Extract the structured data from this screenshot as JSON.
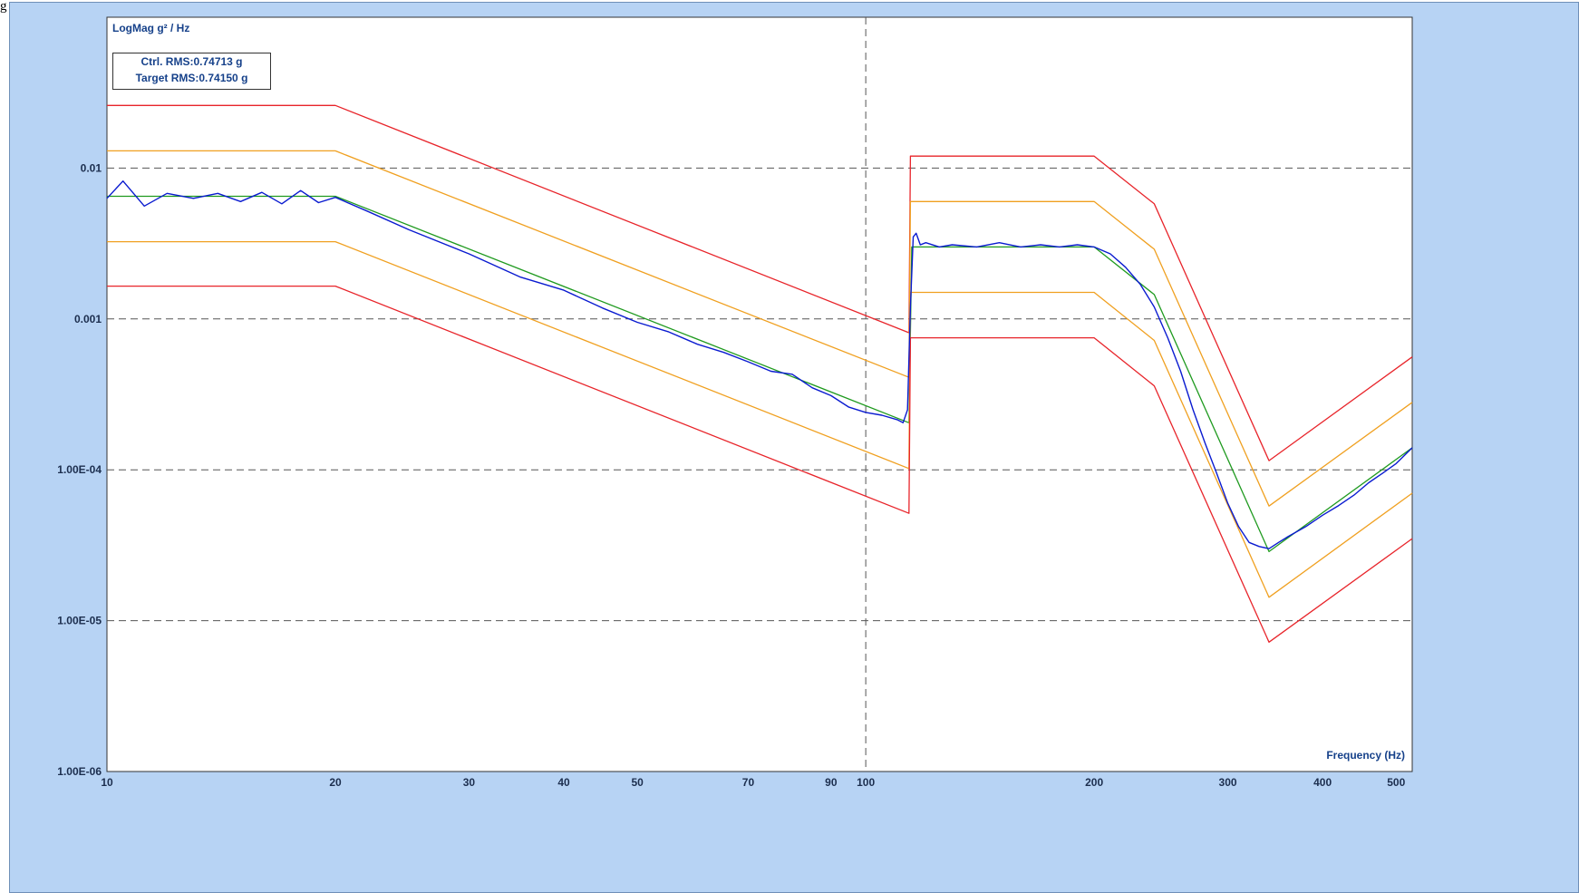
{
  "caption": "g",
  "colors": {
    "frame_bg": "#b7d3f4",
    "plot_bg": "#ffffff",
    "control": "#0a1bd0",
    "target": "#1f9a1f",
    "alarm": "#f0a020",
    "abort": "#e8242a",
    "grid": "#555555"
  },
  "rms": {
    "ctrl": "Ctrl. RMS:0.74713 g",
    "target": "Target RMS:0.74150 g"
  },
  "chart_data": {
    "type": "line",
    "title": "",
    "ylabel": "LogMag g² / Hz",
    "xlabel": "Frequency (Hz)",
    "x_scale": "log",
    "y_scale": "log",
    "xlim": [
      10,
      525
    ],
    "ylim": [
      1e-06,
      0.1
    ],
    "grid": "dashed",
    "x_ticks": [
      {
        "value": 10,
        "label": "10"
      },
      {
        "value": 20,
        "label": "20"
      },
      {
        "value": 30,
        "label": "30"
      },
      {
        "value": 40,
        "label": "40"
      },
      {
        "value": 50,
        "label": "50"
      },
      {
        "value": 70,
        "label": "70"
      },
      {
        "value": 90,
        "label": "90"
      },
      {
        "value": 100,
        "label": "100"
      },
      {
        "value": 200,
        "label": "200"
      },
      {
        "value": 300,
        "label": "300"
      },
      {
        "value": 400,
        "label": "400"
      },
      {
        "value": 500,
        "label": "500"
      }
    ],
    "x_grid": [
      100
    ],
    "y_ticks": [
      {
        "value": 0.01,
        "label": "0.01"
      },
      {
        "value": 0.001,
        "label": "0.001"
      },
      {
        "value": 0.0001,
        "label": "1.00E-04"
      },
      {
        "value": 1e-05,
        "label": "1.00E-05"
      },
      {
        "value": 1e-06,
        "label": "1.00E-06"
      }
    ],
    "series": [
      {
        "key": "abort_high",
        "color": "#e8242a",
        "x": [
          10,
          20,
          114,
          114.5,
          200,
          240,
          340,
          525
        ],
        "y": [
          0.026,
          0.026,
          0.00081,
          0.012,
          0.012,
          0.0058,
          0.000115,
          0.00056
        ]
      },
      {
        "key": "alarm_high",
        "color": "#f0a020",
        "x": [
          10,
          20,
          114,
          114.5,
          200,
          240,
          340,
          525
        ],
        "y": [
          0.013,
          0.013,
          0.00041,
          0.006,
          0.006,
          0.0029,
          5.75e-05,
          0.00028
        ]
      },
      {
        "key": "target",
        "color": "#1f9a1f",
        "x": [
          10,
          20,
          114,
          115,
          200,
          240,
          340,
          525
        ],
        "y": [
          0.0065,
          0.0065,
          0.000205,
          0.003,
          0.003,
          0.00145,
          2.87e-05,
          0.00014
        ]
      },
      {
        "key": "alarm_low",
        "color": "#f0a020",
        "x": [
          10,
          20,
          114,
          114.5,
          200,
          240,
          340,
          525
        ],
        "y": [
          0.00325,
          0.00325,
          0.000102,
          0.0015,
          0.0015,
          0.00072,
          1.43e-05,
          7e-05
        ]
      },
      {
        "key": "abort_low",
        "color": "#e8242a",
        "x": [
          10,
          20,
          114,
          114.5,
          200,
          240,
          340,
          525
        ],
        "y": [
          0.00165,
          0.00165,
          5.15e-05,
          0.00075,
          0.00075,
          0.00036,
          7.2e-06,
          3.5e-05
        ]
      },
      {
        "key": "control",
        "color": "#0a1bd0",
        "x": [
          10,
          10.5,
          11.2,
          12,
          13,
          14,
          15,
          16,
          17,
          18,
          19,
          20,
          22,
          25,
          30,
          35,
          40,
          45,
          50,
          55,
          60,
          65,
          70,
          75,
          80,
          85,
          90,
          95,
          100,
          105,
          110,
          112,
          113.5,
          114.5,
          115.5,
          116.5,
          118,
          120,
          125,
          130,
          140,
          150,
          160,
          170,
          180,
          190,
          200,
          210,
          220,
          230,
          240,
          250,
          260,
          270,
          280,
          290,
          300,
          310,
          320,
          330,
          340,
          350,
          360,
          380,
          400,
          420,
          440,
          460,
          480,
          500,
          525
        ],
        "y": [
          0.0063,
          0.0082,
          0.0056,
          0.0068,
          0.0063,
          0.0068,
          0.006,
          0.0069,
          0.0058,
          0.0071,
          0.0059,
          0.0064,
          0.0052,
          0.0039,
          0.0027,
          0.0019,
          0.00155,
          0.00118,
          0.00095,
          0.00082,
          0.00068,
          0.0006,
          0.00052,
          0.00045,
          0.00043,
          0.00035,
          0.00031,
          0.00026,
          0.00024,
          0.00023,
          0.000215,
          0.000205,
          0.00025,
          0.0012,
          0.0035,
          0.0037,
          0.0031,
          0.0032,
          0.003,
          0.0031,
          0.003,
          0.0032,
          0.003,
          0.0031,
          0.003,
          0.0031,
          0.003,
          0.0027,
          0.0022,
          0.0017,
          0.0012,
          0.00075,
          0.00045,
          0.00025,
          0.00015,
          9.5e-05,
          6e-05,
          4.2e-05,
          3.3e-05,
          3.1e-05,
          3e-05,
          3.3e-05,
          3.6e-05,
          4.2e-05,
          5e-05,
          5.8e-05,
          6.8e-05,
          8.2e-05,
          9.5e-05,
          0.00011,
          0.00014
        ]
      }
    ]
  }
}
